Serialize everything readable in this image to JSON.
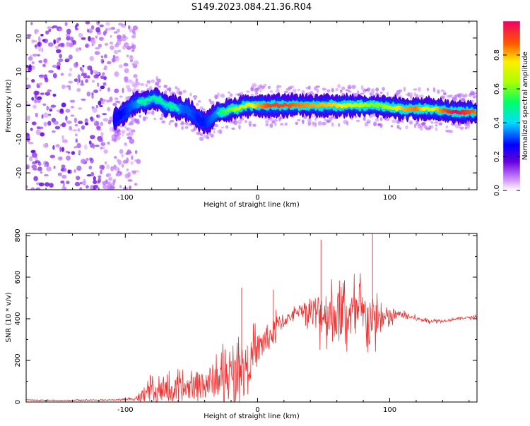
{
  "title": "S149.2023.084.21.36.R04",
  "chart_data": [
    {
      "type": "heatmap",
      "xlabel": "Height of straight line (km)",
      "ylabel": "Frequency (Hz)",
      "xlim": [
        -175,
        166
      ],
      "ylim": [
        -25,
        25
      ],
      "xticks": [
        "-100",
        "0",
        "100"
      ],
      "xtick_values": [
        -100,
        0,
        100
      ],
      "yticks": [
        "20",
        "10",
        "0",
        "-10",
        "-20"
      ],
      "ytick_values": [
        20,
        10,
        0,
        -10,
        -20
      ],
      "colorbar": {
        "label": "Normalized spectral amplitude",
        "ticks": [
          "0.0",
          "0.2",
          "0.4",
          "0.6",
          "0.8"
        ],
        "tick_values": [
          0.0,
          0.2,
          0.4,
          0.6,
          0.8
        ],
        "range": [
          0,
          1
        ]
      },
      "ridge": {
        "x": [
          -108,
          -100,
          -95,
          -90,
          -85,
          -80,
          -75,
          -70,
          -65,
          -60,
          -55,
          -50,
          -45,
          -40,
          -35,
          -30,
          -25,
          -20,
          -15,
          -10,
          -5,
          0,
          10,
          20,
          30,
          40,
          50,
          60,
          70,
          80,
          90,
          100,
          110,
          120,
          130,
          140,
          150,
          160,
          165
        ],
        "y": [
          -4,
          -2,
          0,
          1,
          1,
          2,
          2,
          0,
          0,
          -1,
          -1,
          -2,
          -4,
          -5,
          -4,
          -2,
          -2,
          -1,
          -1,
          0,
          0,
          0,
          0,
          0,
          0,
          0,
          0,
          0,
          0,
          0,
          0,
          -0.5,
          -1,
          -1,
          -1,
          -1.5,
          -2,
          -2,
          -2
        ],
        "amplitude": [
          0.3,
          0.35,
          0.4,
          0.45,
          0.5,
          0.45,
          0.5,
          0.45,
          0.5,
          0.45,
          0.4,
          0.4,
          0.35,
          0.35,
          0.4,
          0.45,
          0.55,
          0.6,
          0.65,
          0.7,
          0.72,
          0.8,
          0.9,
          0.9,
          0.85,
          0.82,
          0.8,
          0.78,
          0.7,
          0.65,
          0.6,
          0.65,
          0.8,
          0.85,
          0.7,
          0.85,
          1.0,
          0.9,
          0.85
        ]
      },
      "noise_region_x": [
        -175,
        -100
      ]
    },
    {
      "type": "line",
      "xlabel": "Height of straight line (km)",
      "ylabel": "SNR (10 * v/v)",
      "xlim": [
        -175,
        166
      ],
      "ylim": [
        0,
        810
      ],
      "xticks": [
        "-100",
        "0",
        "100"
      ],
      "xtick_values": [
        -100,
        0,
        100
      ],
      "yticks": [
        "0",
        "200",
        "400",
        "600",
        "800"
      ],
      "ytick_values": [
        0,
        200,
        400,
        600,
        800
      ],
      "color": "#ee3333",
      "envelope": {
        "x": [
          -175,
          -150,
          -110,
          -95,
          -88,
          -80,
          -70,
          -60,
          -50,
          -40,
          -30,
          -20,
          -12,
          -5,
          0,
          5,
          10,
          15,
          20,
          25,
          30,
          35,
          40,
          45,
          50,
          60,
          70,
          80,
          85,
          90,
          100,
          105,
          110,
          120,
          130,
          140,
          150,
          166
        ],
        "base": [
          10,
          8,
          10,
          15,
          25,
          40,
          55,
          55,
          75,
          90,
          110,
          130,
          160,
          200,
          250,
          290,
          320,
          370,
          390,
          410,
          440,
          450,
          430,
          430,
          430,
          420,
          420,
          410,
          410,
          400,
          400,
          420,
          420,
          400,
          390,
          390,
          400,
          410
        ],
        "amp": [
          4,
          4,
          4,
          10,
          60,
          100,
          100,
          110,
          120,
          150,
          170,
          180,
          180,
          180,
          150,
          150,
          120,
          100,
          60,
          40,
          40,
          60,
          130,
          180,
          220,
          230,
          230,
          230,
          200,
          170,
          100,
          40,
          25,
          20,
          15,
          12,
          12,
          10
        ]
      },
      "peaks": [
        {
          "x": 87,
          "y": 810
        },
        {
          "x": 48,
          "y": 780
        },
        {
          "x": -12,
          "y": 550
        },
        {
          "x": 12,
          "y": 540
        }
      ]
    }
  ]
}
